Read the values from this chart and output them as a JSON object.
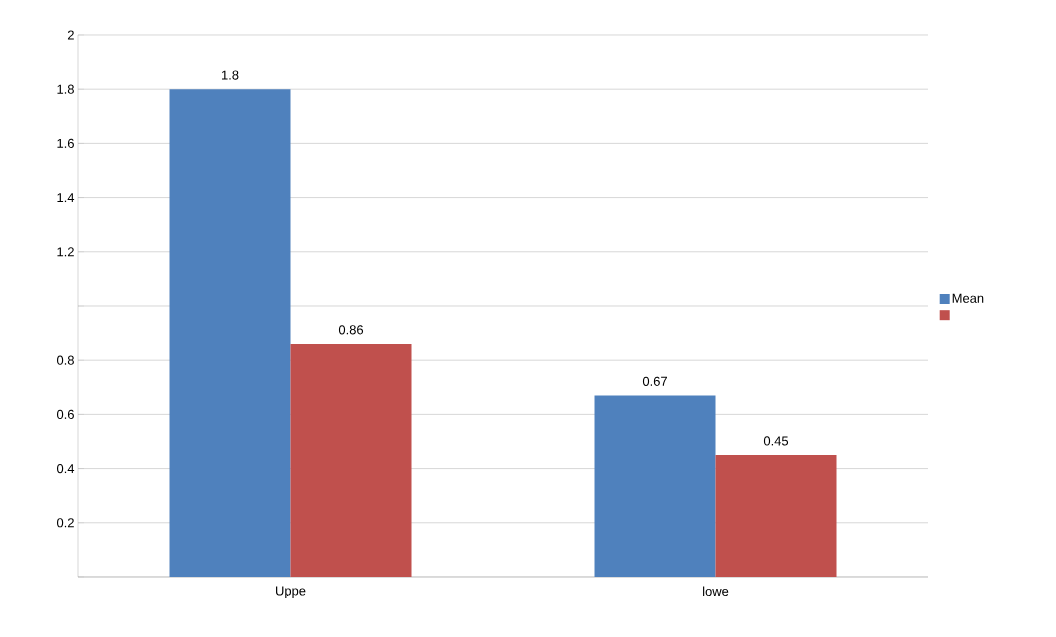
{
  "chart_data": {
    "type": "bar",
    "categories": [
      "Uppe",
      "lowe"
    ],
    "series": [
      {
        "name": "Mean",
        "color": "#4f81bd",
        "values": [
          1.8,
          0.67
        ]
      },
      {
        "color": "#c0504d",
        "values": [
          0.86,
          0.45
        ]
      }
    ],
    "ylim": [
      0,
      2
    ],
    "yticks": [
      {
        "value": 0,
        "label": null
      },
      0.2,
      0.4,
      0.6,
      0.8,
      {
        "value": 1,
        "label": null
      },
      1.2,
      1.4,
      1.6,
      1.8,
      2
    ],
    "grid": "y",
    "legend": "right",
    "data_labels": true
  }
}
